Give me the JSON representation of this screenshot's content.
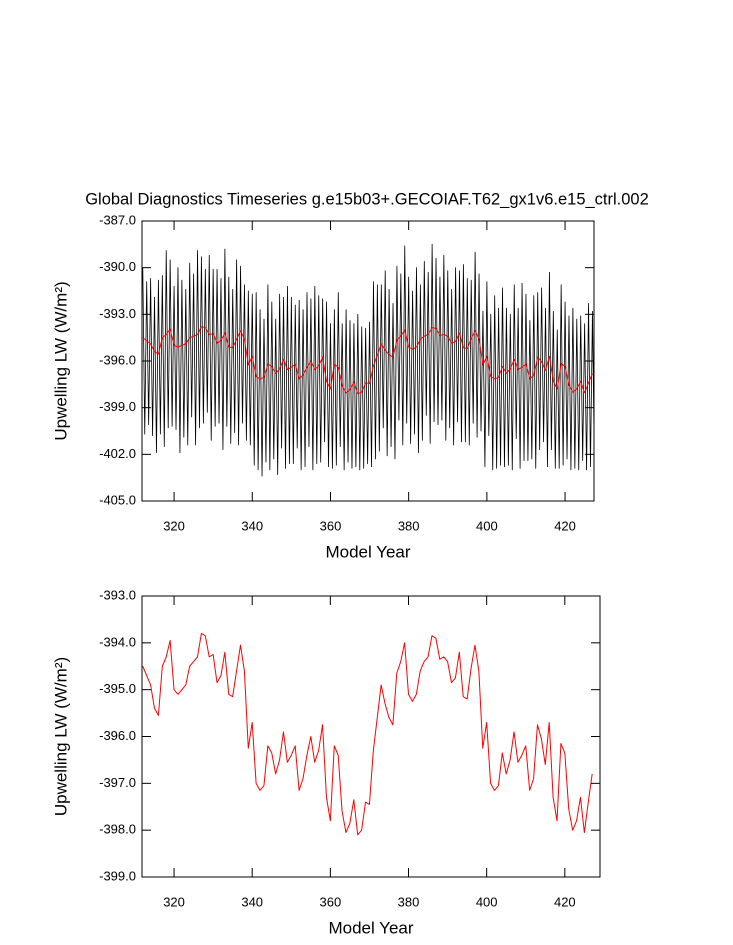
{
  "chart_data": [
    {
      "type": "line",
      "title": "Global Diagnostics Timeseries g.e15b03+.GECOIAF.T62_gx1v6.e15_ctrl.002",
      "x_label": "Model Year",
      "y_label": "Upwelling LW (W/m²)",
      "x": [
        312,
        313,
        314,
        315,
        316,
        317,
        318,
        319,
        320,
        321,
        322,
        323,
        324,
        325,
        326,
        327,
        328,
        329,
        330,
        331,
        332,
        333,
        334,
        335,
        336,
        337,
        338,
        339,
        340,
        341,
        342,
        343,
        344,
        345,
        346,
        347,
        348,
        349,
        350,
        351,
        352,
        353,
        354,
        355,
        356,
        357,
        358,
        359,
        360,
        361,
        362,
        363,
        364,
        365,
        366,
        367,
        368,
        369,
        370,
        371,
        372,
        373,
        374,
        375,
        376,
        377,
        378,
        379,
        380,
        381,
        382,
        383,
        384,
        385,
        386,
        387,
        388,
        389,
        390,
        391,
        392,
        393,
        394,
        395,
        396,
        397,
        398,
        399,
        400,
        401,
        402,
        403,
        404,
        405,
        406,
        407,
        408,
        409,
        410,
        411,
        412,
        413,
        414,
        415,
        416,
        417,
        418,
        419,
        420,
        421,
        422,
        423,
        424,
        425,
        426,
        427
      ],
      "series": [
        {
          "color": "#000000",
          "x": [
            312,
            312.5,
            313,
            313.5,
            314,
            314.5,
            315,
            315.5,
            316,
            316.5,
            317,
            317.5,
            318,
            318.5,
            319,
            319.5,
            320,
            320.5,
            321,
            321.5,
            322,
            322.5,
            323,
            323.5,
            324,
            324.5,
            325,
            325.5,
            326,
            326.5,
            327,
            327.5,
            328,
            328.5,
            329,
            329.5,
            330,
            330.5,
            331,
            331.5,
            332,
            332.5,
            333,
            333.5,
            334,
            334.5,
            335,
            335.5,
            336,
            336.5,
            337,
            337.5,
            338,
            338.5,
            339,
            339.5,
            340,
            340.5,
            341,
            341.5,
            342,
            342.5,
            343,
            343.5,
            344,
            344.5,
            345,
            345.5,
            346,
            346.5,
            347,
            347.5,
            348,
            348.5,
            349,
            349.5,
            350,
            350.5,
            351,
            351.5,
            352,
            352.5,
            353,
            353.5,
            354,
            354.5,
            355,
            355.5,
            356,
            356.5,
            357,
            357.5,
            358,
            358.5,
            359,
            359.5,
            360,
            360.5,
            361,
            361.5,
            362,
            362.5,
            363,
            363.5,
            364,
            364.5,
            365,
            365.5,
            366,
            366.5,
            367,
            367.5,
            368,
            368.5,
            369,
            369.5,
            370,
            370.5,
            371,
            371.5,
            372,
            372.5,
            373,
            373.5,
            374,
            374.5,
            375,
            375.5,
            376,
            376.5,
            377,
            377.5,
            378,
            378.5,
            379,
            379.5,
            380,
            380.5,
            381,
            381.5,
            382,
            382.5,
            383,
            383.5,
            384,
            384.5,
            385,
            385.5,
            386,
            386.5,
            387,
            387.5,
            388,
            388.5,
            389,
            389.5,
            390,
            390.5,
            391,
            391.5,
            392,
            392.5,
            393,
            393.5,
            394,
            394.5,
            395,
            395.5,
            396,
            396.5,
            397,
            397.5,
            398,
            398.5,
            399,
            399.5,
            400,
            400.5,
            401,
            401.5,
            402,
            402.5,
            403,
            403.5,
            404,
            404.5,
            405,
            405.5,
            406,
            406.5,
            407,
            407.5,
            408,
            408.5,
            409,
            409.5,
            410,
            410.5,
            411,
            411.5,
            412,
            412.5,
            413,
            413.5,
            414,
            414.5,
            415,
            415.5,
            416,
            416.5,
            417,
            417.5,
            418,
            418.5,
            419,
            419.5,
            420,
            420.5,
            421,
            421.5,
            422,
            422.5,
            423,
            423.5,
            424,
            424.5,
            425,
            425.5,
            426,
            426.5,
            427,
            427.5
          ],
          "values": [
            -390.0,
            -400.7,
            -390.9,
            -400.1,
            -390.7,
            -400.8,
            -391.9,
            -401.9,
            -390.8,
            -400.7,
            -390.5,
            -401.5,
            -388.9,
            -400.3,
            -389.5,
            -400.2,
            -391.2,
            -400.4,
            -390.0,
            -401.9,
            -390.8,
            -400.9,
            -391.4,
            -401.4,
            -389.7,
            -399.6,
            -390.4,
            -401.4,
            -388.9,
            -400.3,
            -389.3,
            -400.0,
            -390.1,
            -399.3,
            -389.2,
            -401.1,
            -390.1,
            -400.2,
            -390.1,
            -400.0,
            -390.7,
            -401.7,
            -388.8,
            -400.2,
            -390.6,
            -401.3,
            -391.4,
            -400.6,
            -389.5,
            -401.4,
            -389.9,
            -400.0,
            -391.1,
            -401.1,
            -391.5,
            -401.4,
            -391.7,
            -402.7,
            -391.6,
            -403.0,
            -392.7,
            -403.4,
            -393.3,
            -402.5,
            -391.1,
            -403.0,
            -392.2,
            -402.3,
            -393.3,
            -403.3,
            -391.7,
            -401.6,
            -391.9,
            -402.9,
            -391.2,
            -402.6,
            -391.9,
            -402.6,
            -392.4,
            -401.6,
            -392.1,
            -403.0,
            -392.7,
            -402.8,
            -391.6,
            -401.5,
            -392.0,
            -403.0,
            -391.2,
            -402.6,
            -391.8,
            -402.5,
            -392.0,
            -401.2,
            -392.2,
            -402.8,
            -393.6,
            -402.9,
            -392.7,
            -402.7,
            -391.6,
            -401.5,
            -393.6,
            -403.0,
            -392.7,
            -402.5,
            -393.4,
            -402.9,
            -393.6,
            -402.8,
            -393.0,
            -403.0,
            -393.8,
            -402.9,
            -393.9,
            -402.6,
            -393.5,
            -402.8,
            -390.9,
            -402.3,
            -391.1,
            -401.8,
            -391.1,
            -400.3,
            -390.2,
            -402.1,
            -391.4,
            -401.5,
            -392.3,
            -402.3,
            -389.9,
            -399.8,
            -390.4,
            -401.4,
            -388.6,
            -400.0,
            -390.6,
            -401.3,
            -391.5,
            -400.7,
            -390.0,
            -401.9,
            -391.1,
            -401.1,
            -389.6,
            -399.5,
            -390.3,
            -401.3,
            -388.5,
            -399.9,
            -389.4,
            -400.1,
            -390.6,
            -399.8,
            -389.2,
            -401.1,
            -390.2,
            -400.3,
            -391.4,
            -401.4,
            -390.0,
            -399.9,
            -390.2,
            -401.2,
            -389.8,
            -401.2,
            -390.7,
            -401.4,
            -390.8,
            -400.0,
            -389.0,
            -400.9,
            -390.4,
            -400.5,
            -392.8,
            -402.8,
            -390.9,
            -400.8,
            -393.0,
            -403.0,
            -391.8,
            -402.9,
            -392.6,
            -402.7,
            -391.3,
            -402.8,
            -392.6,
            -402.7,
            -393.0,
            -403.0,
            -391.1,
            -401.0,
            -392.6,
            -402.9,
            -391.0,
            -402.4,
            -391.7,
            -402.4,
            -393.4,
            -402.3,
            -391.8,
            -402.9,
            -391.6,
            -401.7,
            -391.3,
            -401.2,
            -392.6,
            -402.8,
            -390.3,
            -401.7,
            -392.8,
            -402.9,
            -394.0,
            -402.9,
            -391.1,
            -402.7,
            -392.2,
            -402.3,
            -393.1,
            -403.0,
            -392.6,
            -402.9,
            -393.3,
            -403.0,
            -393.1,
            -402.4,
            -393.6,
            -403.0,
            -392.3,
            -402.8,
            -392.8,
            -402.7
          ]
        },
        {
          "color": "#ff0000",
          "values": [
            -394.5,
            -394.7,
            -394.9,
            -395.4,
            -395.55,
            -394.5,
            -394.3,
            -393.95,
            -395.0,
            -395.1,
            -395.0,
            -394.9,
            -394.5,
            -394.4,
            -394.3,
            -393.8,
            -393.85,
            -394.3,
            -394.25,
            -394.85,
            -394.7,
            -394.2,
            -395.1,
            -395.15,
            -394.6,
            -394.05,
            -394.6,
            -396.25,
            -395.7,
            -397.0,
            -397.15,
            -397.05,
            -396.2,
            -396.35,
            -396.8,
            -396.5,
            -395.9,
            -396.55,
            -396.4,
            -396.2,
            -397.15,
            -396.9,
            -396.4,
            -396.0,
            -396.55,
            -396.3,
            -395.75,
            -397.3,
            -397.8,
            -396.2,
            -396.4,
            -397.6,
            -398.05,
            -397.85,
            -397.35,
            -398.1,
            -398.0,
            -397.4,
            -397.45,
            -396.3,
            -395.6,
            -394.9,
            -395.3,
            -395.6,
            -395.75,
            -394.65,
            -394.4,
            -394.0,
            -395.1,
            -395.25,
            -395.1,
            -394.6,
            -394.4,
            -394.3,
            -393.85,
            -393.9,
            -394.35,
            -394.3,
            -394.4,
            -394.85,
            -394.75,
            -394.2,
            -395.15,
            -395.2,
            -394.55,
            -394.05,
            -394.6,
            -396.25,
            -395.7,
            -397.0,
            -397.15,
            -397.05,
            -396.35,
            -396.8,
            -396.5,
            -395.9,
            -396.55,
            -396.4,
            -396.2,
            -397.15,
            -396.9,
            -395.75,
            -396.05,
            -396.6,
            -395.7,
            -397.3,
            -397.8,
            -396.15,
            -396.35,
            -397.55,
            -398.0,
            -397.8,
            -397.3,
            -398.05,
            -397.4,
            -396.8
          ]
        }
      ],
      "xlim": [
        311.8,
        427.4
      ],
      "xticks": [
        320,
        340,
        360,
        380,
        400,
        420
      ],
      "ylim": [
        -405,
        -387
      ],
      "yticks": [
        {
          "value": -387,
          "label": "-387.0"
        },
        {
          "value": -390,
          "label": "-390.0"
        },
        {
          "value": -393,
          "label": "-393.0"
        },
        {
          "value": -396,
          "label": "-396.0"
        },
        {
          "value": -399,
          "label": "-399.0"
        },
        {
          "value": -402,
          "label": "-402.0"
        },
        {
          "value": -405,
          "label": "-405.0"
        }
      ]
    },
    {
      "type": "line",
      "x_label": "Model Year",
      "y_label": "Upwelling LW (W/m²)",
      "x": [
        312,
        313,
        314,
        315,
        316,
        317,
        318,
        319,
        320,
        321,
        322,
        323,
        324,
        325,
        326,
        327,
        328,
        329,
        330,
        331,
        332,
        333,
        334,
        335,
        336,
        337,
        338,
        339,
        340,
        341,
        342,
        343,
        344,
        345,
        346,
        347,
        348,
        349,
        350,
        351,
        352,
        353,
        354,
        355,
        356,
        357,
        358,
        359,
        360,
        361,
        362,
        363,
        364,
        365,
        366,
        367,
        368,
        369,
        370,
        371,
        372,
        373,
        374,
        375,
        376,
        377,
        378,
        379,
        380,
        381,
        382,
        383,
        384,
        385,
        386,
        387,
        388,
        389,
        390,
        391,
        392,
        393,
        394,
        395,
        396,
        397,
        398,
        399,
        400,
        401,
        402,
        403,
        404,
        405,
        406,
        407,
        408,
        409,
        410,
        411,
        412,
        413,
        414,
        415,
        416,
        417,
        418,
        419,
        420,
        421,
        422,
        423,
        424,
        425,
        426,
        427
      ],
      "series": [
        {
          "color": "#ff0000",
          "values": [
            -394.5,
            -394.7,
            -394.9,
            -395.4,
            -395.55,
            -394.5,
            -394.3,
            -393.95,
            -395.0,
            -395.1,
            -395.0,
            -394.9,
            -394.5,
            -394.4,
            -394.3,
            -393.8,
            -393.85,
            -394.3,
            -394.25,
            -394.85,
            -394.7,
            -394.2,
            -395.1,
            -395.15,
            -394.6,
            -394.05,
            -394.6,
            -396.25,
            -395.7,
            -397.0,
            -397.15,
            -397.05,
            -396.2,
            -396.35,
            -396.8,
            -396.5,
            -395.9,
            -396.55,
            -396.4,
            -396.2,
            -397.15,
            -396.9,
            -396.4,
            -396.0,
            -396.55,
            -396.3,
            -395.75,
            -397.3,
            -397.8,
            -396.2,
            -396.4,
            -397.6,
            -398.05,
            -397.85,
            -397.35,
            -398.1,
            -398.0,
            -397.4,
            -397.45,
            -396.3,
            -395.6,
            -394.9,
            -395.3,
            -395.6,
            -395.75,
            -394.65,
            -394.4,
            -394.0,
            -395.1,
            -395.25,
            -395.1,
            -394.6,
            -394.4,
            -394.3,
            -393.85,
            -393.9,
            -394.35,
            -394.3,
            -394.4,
            -394.85,
            -394.75,
            -394.2,
            -395.15,
            -395.2,
            -394.55,
            -394.05,
            -394.6,
            -396.25,
            -395.7,
            -397.0,
            -397.15,
            -397.05,
            -396.35,
            -396.8,
            -396.5,
            -395.9,
            -396.55,
            -396.4,
            -396.2,
            -397.15,
            -396.9,
            -395.75,
            -396.05,
            -396.6,
            -395.7,
            -397.3,
            -397.8,
            -396.15,
            -396.35,
            -397.55,
            -398.0,
            -397.8,
            -397.3,
            -398.05,
            -397.4,
            -396.8
          ]
        }
      ],
      "xlim": [
        311.8,
        429.0
      ],
      "xticks": [
        320,
        340,
        360,
        380,
        400,
        420
      ],
      "ylim": [
        -399,
        -393
      ],
      "yticks": [
        {
          "value": -393,
          "label": "-393.0"
        },
        {
          "value": -394,
          "label": "-394.0"
        },
        {
          "value": -395,
          "label": "-395.0"
        },
        {
          "value": -396,
          "label": "-396.0"
        },
        {
          "value": -397,
          "label": "-397.0"
        },
        {
          "value": -398,
          "label": "-398.0"
        },
        {
          "value": -399,
          "label": "-399.0"
        }
      ]
    }
  ]
}
